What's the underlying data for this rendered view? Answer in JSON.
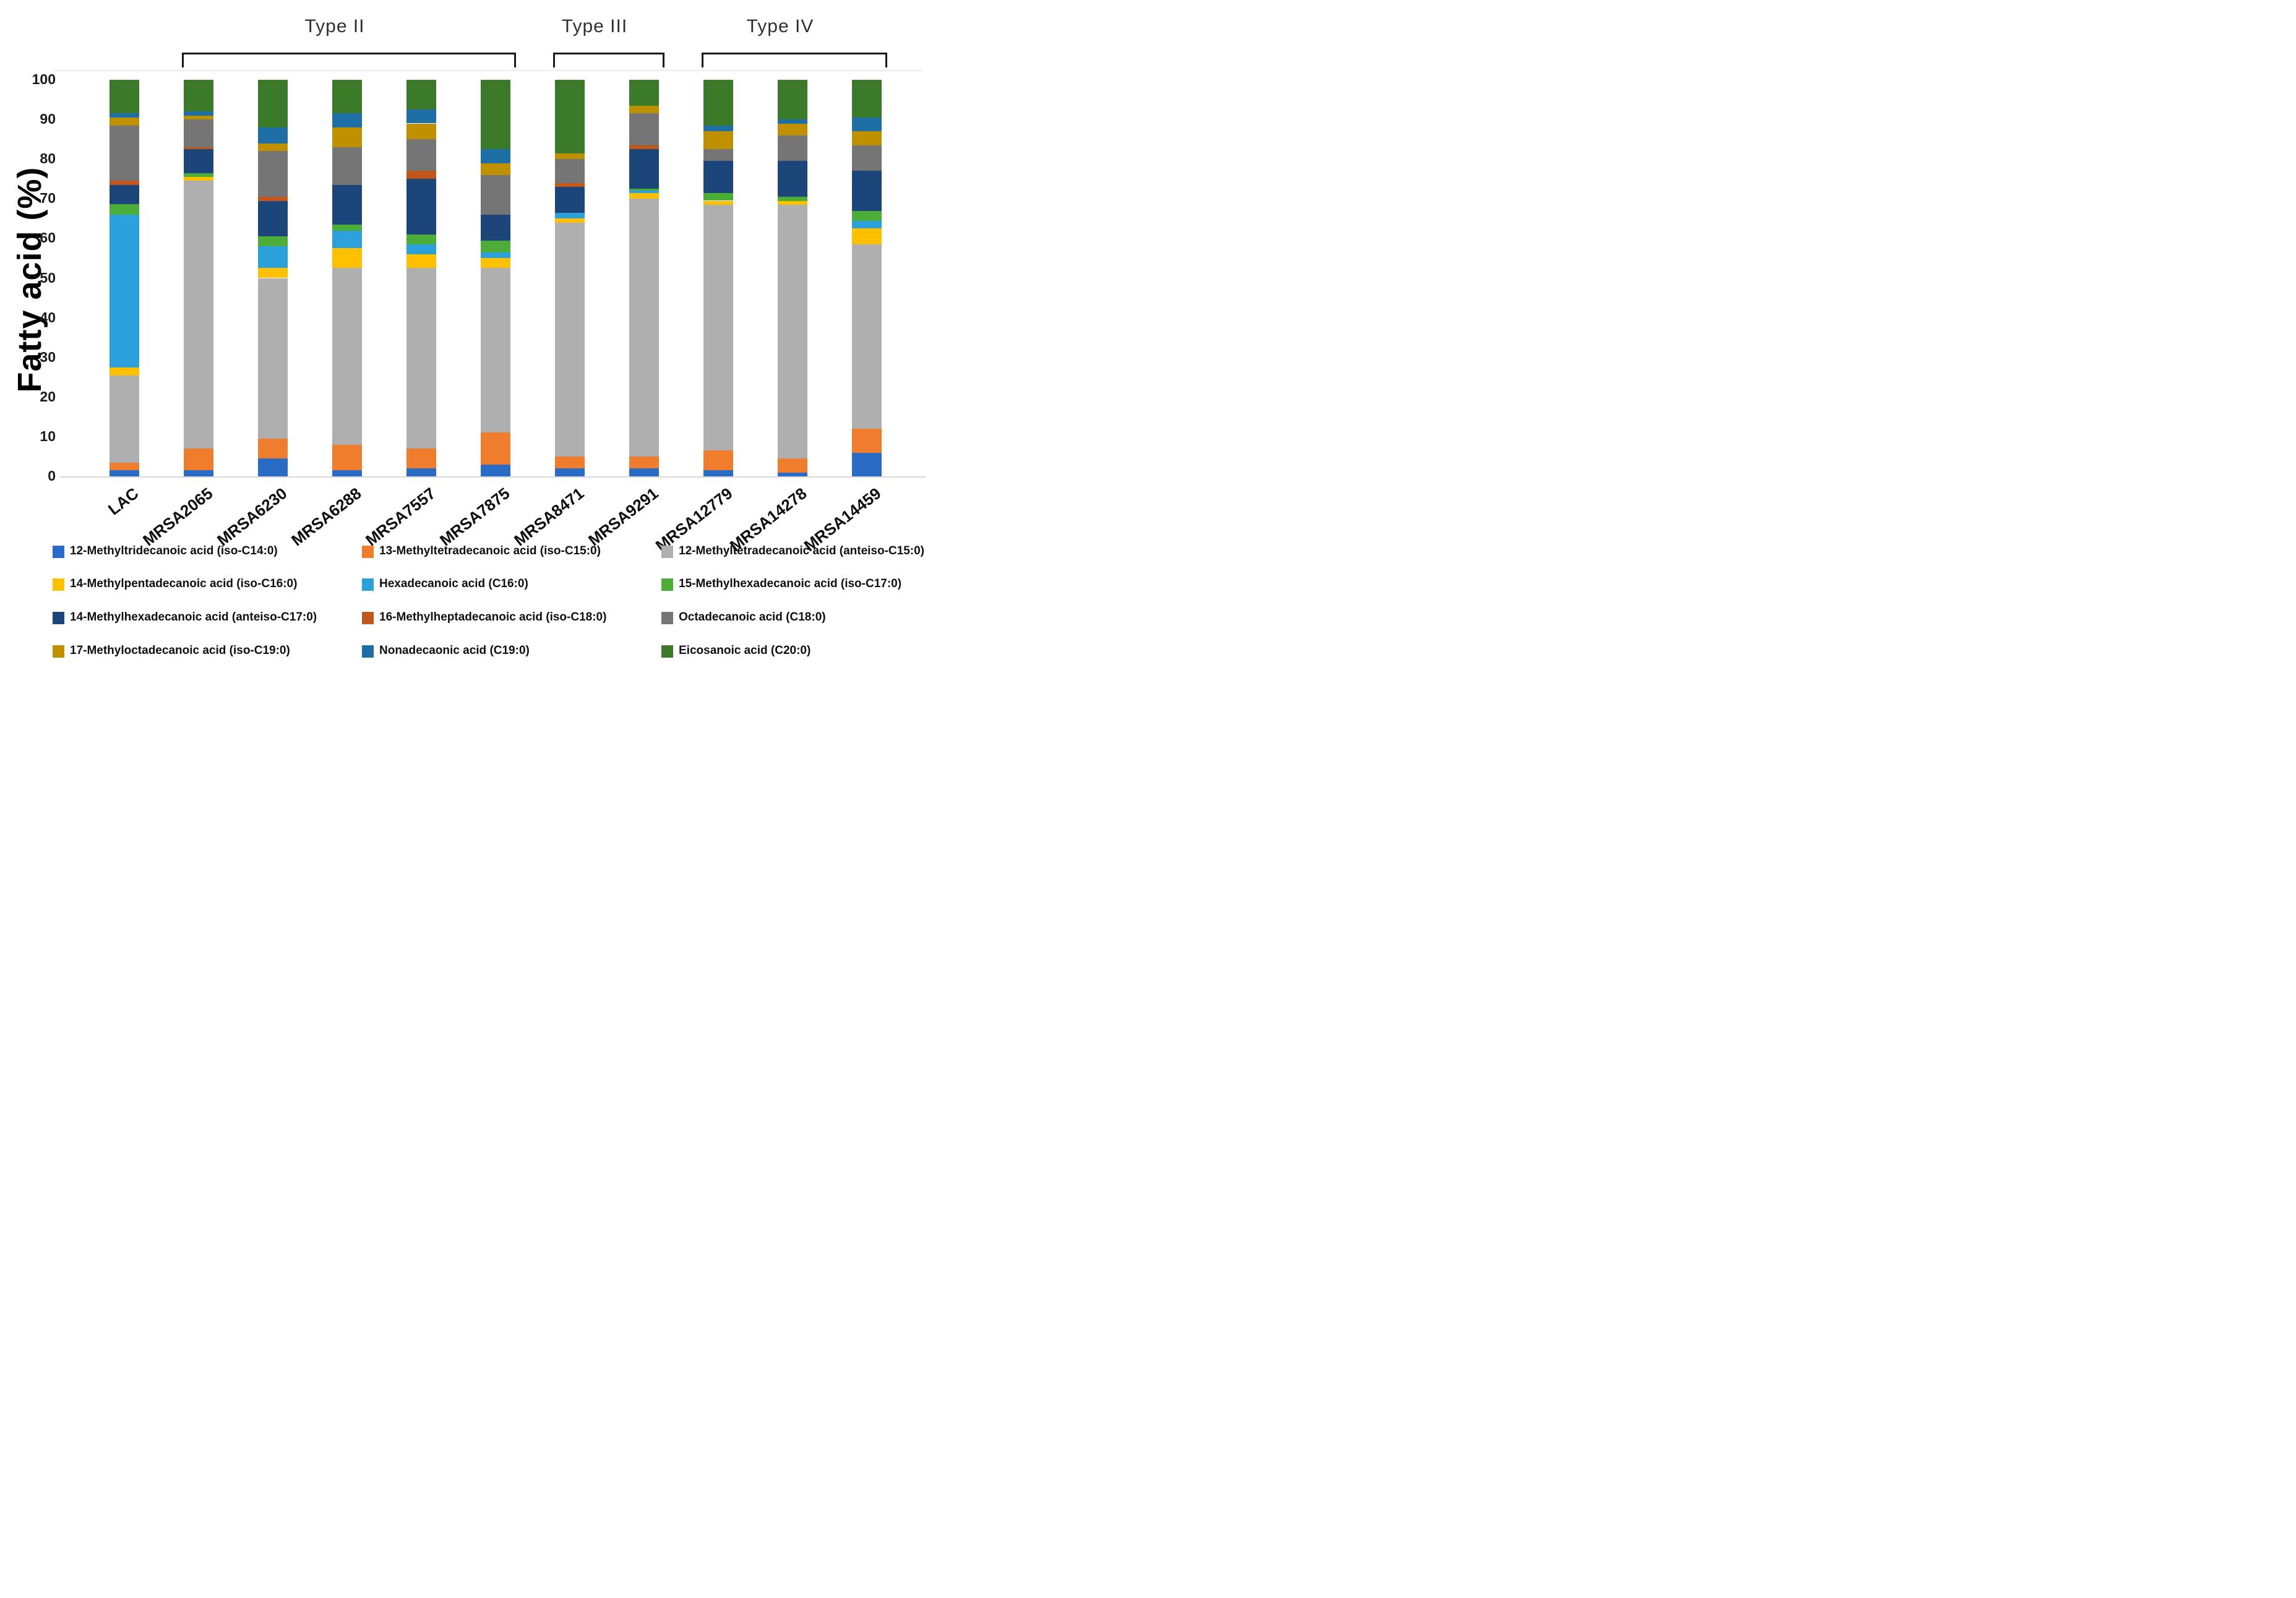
{
  "y_axis": {
    "title": "Fatty acid (%)",
    "ticks": [
      0,
      10,
      20,
      30,
      40,
      50,
      60,
      70,
      80,
      90,
      100
    ],
    "max": 100
  },
  "groups": [
    {
      "label": "Type II",
      "first_category": "MRSA2065",
      "last_category": "MRSA7875"
    },
    {
      "label": "Type III",
      "first_category": "MRSA8471",
      "last_category": "MRSA9291"
    },
    {
      "label": "Type IV",
      "first_category": "MRSA12779",
      "last_category": "MRSA14459"
    }
  ],
  "chart_data": {
    "type": "bar",
    "stacked": true,
    "title": "",
    "xlabel": "",
    "ylabel": "Fatty acid (%)",
    "ylim": [
      0,
      100
    ],
    "grid": false,
    "legend_position": "bottom",
    "categories": [
      "LAC",
      "MRSA2065",
      "MRSA6230",
      "MRSA6288",
      "MRSA7557",
      "MRSA7875",
      "MRSA8471",
      "MRSA9291",
      "MRSA12779",
      "MRSA14278",
      "MRSA14459"
    ],
    "series": [
      {
        "name": "12-Methyltridecanoic acid (iso-C14:0)",
        "color": "#2A6BC6",
        "values": [
          1.5,
          1.5,
          4.5,
          1.5,
          2,
          3,
          2,
          2,
          1.5,
          1,
          6
        ]
      },
      {
        "name": "13-Methyltetradecanoic acid (iso-C15:0)",
        "color": "#F07D2E",
        "values": [
          2,
          5.5,
          5,
          6.5,
          5,
          8,
          3,
          3,
          5,
          3.5,
          6
        ]
      },
      {
        "name": "12-Methyltetradecanoic acid (anteiso-C15:0)",
        "color": "#AFAFAF",
        "values": [
          22,
          67.5,
          40.5,
          44.5,
          45.5,
          41.5,
          59,
          65,
          62,
          64,
          46.5
        ]
      },
      {
        "name": "14-Methylpentadecanoic acid (iso-C16:0)",
        "color": "#FFC000",
        "values": [
          2,
          1,
          2.5,
          5,
          3.5,
          2.5,
          1,
          1.5,
          1,
          1,
          4
        ]
      },
      {
        "name": "Hexadecanoic acid (C16:0)",
        "color": "#2BA0DB",
        "values": [
          38.5,
          0,
          5.5,
          4.5,
          2.5,
          1.5,
          1.5,
          0.5,
          0,
          0,
          2
        ]
      },
      {
        "name": "15-Methylhexadecanoic acid (iso-C17:0)",
        "color": "#4CAE39",
        "values": [
          2.7,
          1,
          2.5,
          1.5,
          2.5,
          3,
          0,
          0.5,
          2,
          1,
          2.5
        ]
      },
      {
        "name": "14-Methylhexadecanoic acid (anteiso-C17:0)",
        "color": "#1C4679",
        "values": [
          4.8,
          6,
          9,
          10,
          14,
          6.5,
          6.5,
          10,
          8,
          9,
          10
        ]
      },
      {
        "name": "16-Methylheptadecanoic acid (iso-C18:0)",
        "color": "#C3571B",
        "values": [
          1,
          0.5,
          1,
          0,
          2,
          0,
          1,
          1,
          0,
          0,
          0
        ]
      },
      {
        "name": "Octadecanoic acid (C18:0)",
        "color": "#757575",
        "values": [
          14,
          7,
          11.5,
          9.5,
          8,
          10,
          6,
          8,
          3,
          6.5,
          6.5
        ]
      },
      {
        "name": "17-Methyloctadecanoic acid (iso-C19:0)",
        "color": "#BF9000",
        "values": [
          2,
          1,
          2,
          5,
          4,
          3,
          1.5,
          2,
          4.5,
          3,
          3.5
        ]
      },
      {
        "name": "Nonadecaonic acid (C19:0)",
        "color": "#1E6FA6",
        "values": [
          1,
          1,
          4,
          3.5,
          3.5,
          3.5,
          0,
          0,
          1.5,
          1,
          3.5
        ]
      },
      {
        "name": "Eicosanoic acid (C20:0)",
        "color": "#3A7A28",
        "values": [
          8.5,
          8,
          12,
          8.5,
          7.5,
          17.5,
          18.5,
          6.5,
          11.5,
          10,
          9.5
        ]
      }
    ]
  },
  "layout_colors": {
    "axis_line": "#d9d9d9",
    "top_hairline": "#ececec",
    "bracket": "#191919"
  }
}
